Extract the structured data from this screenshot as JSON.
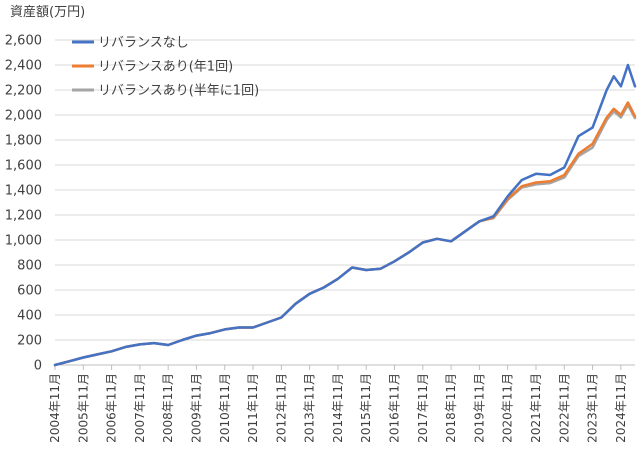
{
  "chart_data": {
    "type": "line",
    "title": "",
    "ylabel": "資産額(万円)",
    "xlabel": "",
    "ylim": [
      0,
      2600
    ],
    "yticks": [
      0,
      200,
      400,
      600,
      800,
      1000,
      1200,
      1400,
      1600,
      1800,
      2000,
      2200,
      2400,
      2600
    ],
    "ytick_labels": [
      "0",
      "200",
      "400",
      "600",
      "800",
      "1,000",
      "1,200",
      "1,400",
      "1,600",
      "1,800",
      "2,000",
      "2,200",
      "2,400",
      "2,600"
    ],
    "xlim": [
      "2004-11",
      "2025-05"
    ],
    "xtick_labels": [
      "2004年11月",
      "2005年11月",
      "2006年11月",
      "2007年11月",
      "2008年11月",
      "2009年11月",
      "2010年11月",
      "2011年11月",
      "2012年11月",
      "2013年11月",
      "2014年11月",
      "2015年11月",
      "2016年11月",
      "2017年11月",
      "2018年11月",
      "2019年11月",
      "2020年11月",
      "2021年11月",
      "2022年11月",
      "2023年11月",
      "2024年11月"
    ],
    "grid": true,
    "legend_position": "top-left",
    "x": [
      "2004-11",
      "2005-05",
      "2005-11",
      "2006-05",
      "2006-11",
      "2007-05",
      "2007-11",
      "2008-05",
      "2008-11",
      "2009-05",
      "2009-11",
      "2010-05",
      "2010-11",
      "2011-05",
      "2011-11",
      "2012-05",
      "2012-11",
      "2013-05",
      "2013-11",
      "2014-05",
      "2014-11",
      "2015-05",
      "2015-11",
      "2016-05",
      "2016-11",
      "2017-05",
      "2017-11",
      "2018-05",
      "2018-11",
      "2019-05",
      "2019-11",
      "2020-05",
      "2020-11",
      "2021-05",
      "2021-11",
      "2022-05",
      "2022-11",
      "2023-05",
      "2023-11",
      "2024-05",
      "2024-08",
      "2024-11",
      "2025-02",
      "2025-05"
    ],
    "series": [
      {
        "name": "リバランスなし",
        "color": "#4472c4",
        "values": [
          0,
          30,
          60,
          85,
          110,
          145,
          165,
          175,
          160,
          200,
          235,
          255,
          285,
          300,
          300,
          340,
          380,
          490,
          570,
          620,
          690,
          780,
          760,
          770,
          830,
          900,
          980,
          1010,
          990,
          1070,
          1150,
          1190,
          1350,
          1480,
          1530,
          1520,
          1580,
          1830,
          1900,
          2200,
          2310,
          2230,
          2400,
          2230
        ]
      },
      {
        "name": "リバランスあり(年1回)",
        "color": "#ed7d31",
        "values": [
          0,
          30,
          60,
          85,
          110,
          145,
          165,
          175,
          160,
          200,
          235,
          255,
          285,
          300,
          300,
          340,
          380,
          490,
          570,
          620,
          690,
          780,
          760,
          770,
          830,
          900,
          980,
          1010,
          990,
          1070,
          1150,
          1180,
          1330,
          1430,
          1460,
          1470,
          1520,
          1690,
          1770,
          1980,
          2050,
          2000,
          2100,
          1990
        ]
      },
      {
        "name": "リバランスあり(半年に1回)",
        "color": "#a5a5a5",
        "values": [
          0,
          30,
          60,
          85,
          110,
          145,
          165,
          175,
          160,
          200,
          235,
          255,
          285,
          300,
          300,
          340,
          380,
          490,
          570,
          620,
          690,
          780,
          760,
          770,
          830,
          900,
          980,
          1010,
          990,
          1070,
          1150,
          1175,
          1320,
          1420,
          1445,
          1455,
          1500,
          1670,
          1740,
          1960,
          2030,
          1980,
          2080,
          1975
        ]
      }
    ]
  }
}
